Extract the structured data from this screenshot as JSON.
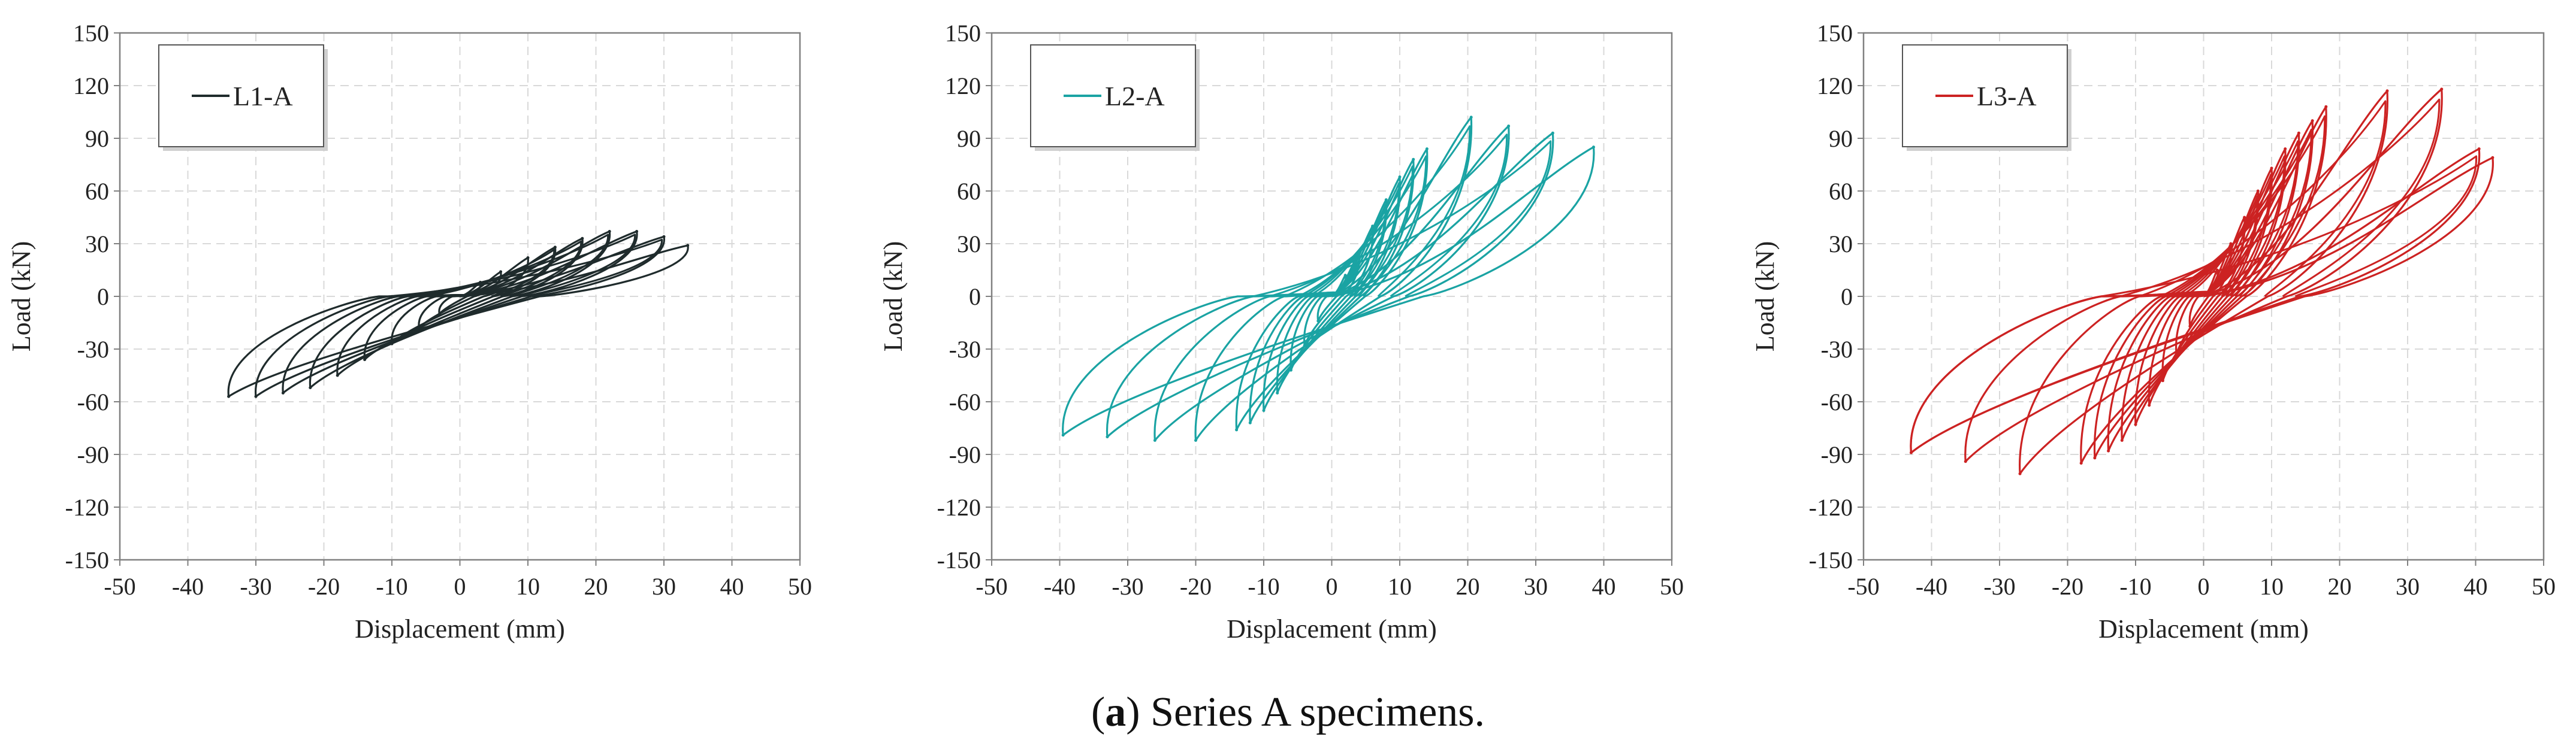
{
  "caption": {
    "label": "a",
    "text": "Series A specimens."
  },
  "chart_data": [
    {
      "type": "line",
      "title": "",
      "xlabel": "Displacement (mm)",
      "ylabel": "Load (kN)",
      "xlim": [
        -50,
        50
      ],
      "ylim": [
        -150,
        150
      ],
      "xticks": [
        -50,
        -40,
        -30,
        -20,
        -10,
        0,
        10,
        20,
        30,
        40,
        50
      ],
      "yticks": [
        -150,
        -120,
        -90,
        -60,
        -30,
        0,
        30,
        60,
        90,
        120,
        150
      ],
      "grid": true,
      "legend": "top-left",
      "series": [
        {
          "name": "L1-A",
          "color": "#1f2b2c",
          "peak_points": [
            {
              "x": 3,
              "y": 8
            },
            {
              "x": 6,
              "y": 14
            },
            {
              "x": 10,
              "y": 22
            },
            {
              "x": 14,
              "y": 28
            },
            {
              "x": 18,
              "y": 33
            },
            {
              "x": 22,
              "y": 37
            },
            {
              "x": 26,
              "y": 37
            },
            {
              "x": 30,
              "y": 34
            },
            {
              "x": 33.5,
              "y": 29
            }
          ],
          "valley_points": [
            {
              "x": -3,
              "y": -10
            },
            {
              "x": -6,
              "y": -18
            },
            {
              "x": -10,
              "y": -27
            },
            {
              "x": -14,
              "y": -36
            },
            {
              "x": -18,
              "y": -45
            },
            {
              "x": -22,
              "y": -52
            },
            {
              "x": -26,
              "y": -55
            },
            {
              "x": -30,
              "y": -57
            },
            {
              "x": -34,
              "y": -57
            }
          ]
        }
      ]
    },
    {
      "type": "line",
      "title": "",
      "xlabel": "Displacement (mm)",
      "ylabel": "Load (kN)",
      "xlim": [
        -50,
        50
      ],
      "ylim": [
        -150,
        150
      ],
      "xticks": [
        -50,
        -40,
        -30,
        -20,
        -10,
        0,
        10,
        20,
        30,
        40,
        50
      ],
      "yticks": [
        -150,
        -120,
        -90,
        -60,
        -30,
        0,
        30,
        60,
        90,
        120,
        150
      ],
      "grid": true,
      "legend": "top-left",
      "series": [
        {
          "name": "L2-A",
          "color": "#1aa3a3",
          "peak_points": [
            {
              "x": 2,
              "y": 12
            },
            {
              "x": 4,
              "y": 25
            },
            {
              "x": 6,
              "y": 40
            },
            {
              "x": 8,
              "y": 55
            },
            {
              "x": 10,
              "y": 68
            },
            {
              "x": 12,
              "y": 78
            },
            {
              "x": 14,
              "y": 84
            },
            {
              "x": 20.5,
              "y": 102
            },
            {
              "x": 26,
              "y": 97
            },
            {
              "x": 32.5,
              "y": 93
            },
            {
              "x": 38.5,
              "y": 85
            }
          ],
          "valley_points": [
            {
              "x": -2,
              "y": -14
            },
            {
              "x": -4,
              "y": -28
            },
            {
              "x": -6,
              "y": -42
            },
            {
              "x": -8,
              "y": -55
            },
            {
              "x": -10,
              "y": -65
            },
            {
              "x": -12,
              "y": -72
            },
            {
              "x": -14,
              "y": -76
            },
            {
              "x": -20,
              "y": -82
            },
            {
              "x": -26,
              "y": -82
            },
            {
              "x": -33,
              "y": -80
            },
            {
              "x": -39.5,
              "y": -79
            }
          ]
        }
      ]
    },
    {
      "type": "line",
      "title": "",
      "xlabel": "Displacement (mm)",
      "ylabel": "Load (kN)",
      "xlim": [
        -50,
        50
      ],
      "ylim": [
        -150,
        150
      ],
      "xticks": [
        -50,
        -40,
        -30,
        -20,
        -10,
        0,
        10,
        20,
        30,
        40,
        50
      ],
      "yticks": [
        -150,
        -120,
        -90,
        -60,
        -30,
        0,
        30,
        60,
        90,
        120,
        150
      ],
      "grid": true,
      "legend": "top-left",
      "series": [
        {
          "name": "L3-A",
          "color": "#cc2222",
          "peak_points": [
            {
              "x": 2,
              "y": 15
            },
            {
              "x": 4,
              "y": 30
            },
            {
              "x": 6,
              "y": 45
            },
            {
              "x": 8,
              "y": 60
            },
            {
              "x": 10,
              "y": 73
            },
            {
              "x": 12,
              "y": 84
            },
            {
              "x": 14,
              "y": 93
            },
            {
              "x": 16,
              "y": 100
            },
            {
              "x": 18,
              "y": 108
            },
            {
              "x": 27,
              "y": 117
            },
            {
              "x": 35,
              "y": 118
            },
            {
              "x": 40.5,
              "y": 84
            },
            {
              "x": 42.5,
              "y": 79
            }
          ],
          "valley_points": [
            {
              "x": -2,
              "y": -17
            },
            {
              "x": -4,
              "y": -33
            },
            {
              "x": -6,
              "y": -48
            },
            {
              "x": -8,
              "y": -62
            },
            {
              "x": -10,
              "y": -73
            },
            {
              "x": -12,
              "y": -82
            },
            {
              "x": -14,
              "y": -88
            },
            {
              "x": -16,
              "y": -92
            },
            {
              "x": -18,
              "y": -95
            },
            {
              "x": -27,
              "y": -101
            },
            {
              "x": -35,
              "y": -94
            },
            {
              "x": -43,
              "y": -89
            }
          ]
        }
      ]
    }
  ]
}
